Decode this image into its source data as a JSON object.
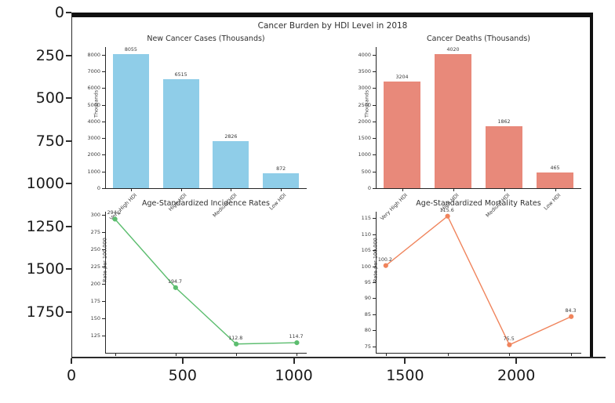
{
  "figure": {
    "suptitle": "Cancer Burden by HDI Level in 2018",
    "categories": [
      "Very High HDI",
      "High HDI",
      "Medium HDI",
      "Low HDI"
    ]
  },
  "outer_axes": {
    "y_ticks": [
      0,
      250,
      500,
      750,
      1000,
      1250,
      1500,
      1750
    ],
    "x_ticks": [
      0,
      500,
      1000,
      1500,
      2000
    ]
  },
  "chart_data": [
    {
      "type": "bar",
      "title": "New Cancer Cases (Thousands)",
      "ylabel": "Thousands",
      "categories": [
        "Very High HDI",
        "High HDI",
        "Medium HDI",
        "Low HDI"
      ],
      "values": [
        8055,
        6515,
        2826,
        872
      ],
      "yticks": [
        0,
        1000,
        2000,
        3000,
        4000,
        5000,
        6000,
        7000,
        8000
      ],
      "ylim": [
        0,
        8460
      ],
      "color": "#8FCDE8",
      "legend": "none",
      "grid": false
    },
    {
      "type": "bar",
      "title": "Cancer Deaths (Thousands)",
      "ylabel": "Thousands",
      "categories": [
        "Very High HDI",
        "High HDI",
        "Medium HDI",
        "Low HDI"
      ],
      "values": [
        3204,
        4020,
        1862,
        465
      ],
      "yticks": [
        0,
        500,
        1000,
        1500,
        2000,
        2500,
        3000,
        3500,
        4000
      ],
      "ylim": [
        0,
        4230
      ],
      "color": "#E8897A",
      "legend": "none",
      "grid": false
    },
    {
      "type": "line",
      "title": "Age-Standardized Incidence Rates",
      "ylabel": "Rate per 100,000",
      "categories": [
        "Very High HDI",
        "High HDI",
        "Medium HDI",
        "Low HDI"
      ],
      "values": [
        294.2,
        194.7,
        112.8,
        114.7
      ],
      "yticks": [
        125,
        150,
        175,
        200,
        225,
        250,
        275,
        300
      ],
      "ylim": [
        100,
        305
      ],
      "color": "#5CBD6F",
      "legend": "none",
      "grid": false
    },
    {
      "type": "line",
      "title": "Age-Standardized Mortality Rates",
      "ylabel": "Rate per 100,000",
      "categories": [
        "Very High HDI",
        "High HDI",
        "Medium HDI",
        "Low HDI"
      ],
      "values": [
        100.2,
        115.6,
        75.5,
        84.3
      ],
      "yticks": [
        75,
        80,
        85,
        90,
        95,
        100,
        105,
        110,
        115
      ],
      "ylim": [
        73,
        117
      ],
      "color": "#F0845C",
      "legend": "none",
      "grid": false
    }
  ]
}
